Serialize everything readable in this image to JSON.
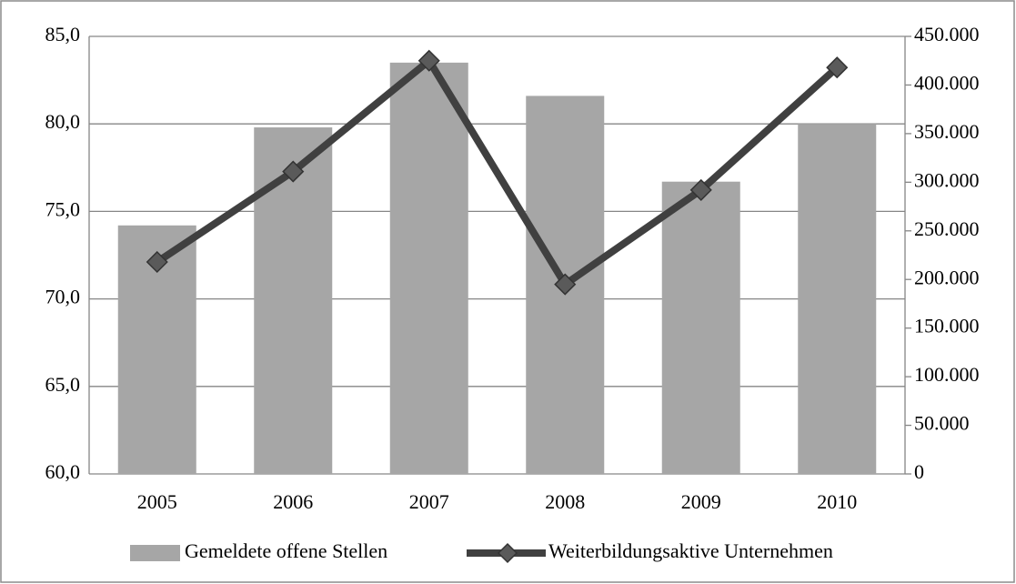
{
  "chart_data": {
    "type": "bar_line",
    "categories": [
      "2005",
      "2006",
      "2007",
      "2008",
      "2009",
      "2010"
    ],
    "series": [
      {
        "name": "Gemeldete offene Stellen",
        "type": "bar",
        "color": "#a6a6a6",
        "values": [
          74.2,
          79.8,
          83.5,
          81.6,
          76.7,
          80.0
        ]
      },
      {
        "name": "Weiterbildungsaktive Unternehmen",
        "type": "line",
        "axis": "y2",
        "color": "#404040",
        "values": [
          218000,
          311000,
          425000,
          195000,
          292000,
          418000
        ]
      }
    ],
    "ylim": [
      60,
      85
    ],
    "yticks": [
      {
        "value": 60,
        "label": "60,0"
      },
      {
        "value": 65,
        "label": "65,0"
      },
      {
        "value": 70,
        "label": "70,0"
      },
      {
        "value": 75,
        "label": "75,0"
      },
      {
        "value": 80,
        "label": "80,0"
      },
      {
        "value": 85,
        "label": "85,0"
      }
    ],
    "y2lim": [
      0,
      450000
    ],
    "y2ticks": [
      0,
      {
        "value": 50000,
        "label": "50.000"
      },
      {
        "value": 100000,
        "label": "100.000"
      },
      {
        "value": 150000,
        "label": "150.000"
      },
      {
        "value": 200000,
        "label": "200.000"
      },
      {
        "value": 250000,
        "label": "250.000"
      },
      {
        "value": 300000,
        "label": "300.000"
      },
      {
        "value": 350000,
        "label": "350.000"
      },
      {
        "value": 400000,
        "label": "400.000"
      },
      {
        "value": 450000,
        "label": "450.000"
      }
    ],
    "grid": true,
    "legend": "bottom"
  }
}
